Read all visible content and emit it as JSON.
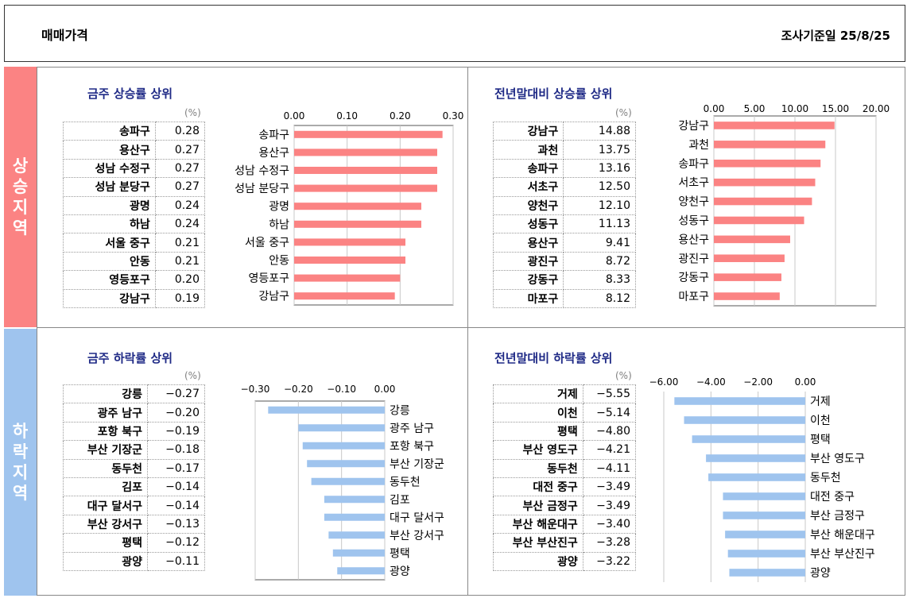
{
  "header": {
    "title": "매매가격",
    "survey_date": "조사기준일  25/8/25"
  },
  "side_labels": {
    "rise": "상\n승\n지\n역",
    "fall": "하\n락\n지\n역"
  },
  "colors": {
    "rise": "#fb8383",
    "fall": "#9fc4ee",
    "title": "#1f2a86"
  },
  "panels": {
    "week_rise": {
      "title": "금주 상승률 상위",
      "unit": "(%)",
      "rows": [
        {
          "name": "송파구",
          "value": "0.28"
        },
        {
          "name": "용산구",
          "value": "0.27"
        },
        {
          "name": "성남 수정구",
          "value": "0.27"
        },
        {
          "name": "성남 분당구",
          "value": "0.27"
        },
        {
          "name": "광명",
          "value": "0.24"
        },
        {
          "name": "하남",
          "value": "0.24"
        },
        {
          "name": "서울 중구",
          "value": "0.21"
        },
        {
          "name": "안동",
          "value": "0.21"
        },
        {
          "name": "영등포구",
          "value": "0.20"
        },
        {
          "name": "강남구",
          "value": "0.19"
        }
      ]
    },
    "ytd_rise": {
      "title": "전년말대비 상승률 상위",
      "unit": "(%)",
      "rows": [
        {
          "name": "강남구",
          "value": "14.88"
        },
        {
          "name": "과천",
          "value": "13.75"
        },
        {
          "name": "송파구",
          "value": "13.16"
        },
        {
          "name": "서초구",
          "value": "12.50"
        },
        {
          "name": "양천구",
          "value": "12.10"
        },
        {
          "name": "성동구",
          "value": "11.13"
        },
        {
          "name": "용산구",
          "value": "9.41"
        },
        {
          "name": "광진구",
          "value": "8.72"
        },
        {
          "name": "강동구",
          "value": "8.33"
        },
        {
          "name": "마포구",
          "value": "8.12"
        }
      ]
    },
    "week_fall": {
      "title": "금주 하락률 상위",
      "unit": "(%)",
      "rows": [
        {
          "name": "강릉",
          "value": "−0.27"
        },
        {
          "name": "광주 남구",
          "value": "−0.20"
        },
        {
          "name": "포항 북구",
          "value": "−0.19"
        },
        {
          "name": "부산 기장군",
          "value": "−0.18"
        },
        {
          "name": "동두천",
          "value": "−0.17"
        },
        {
          "name": "김포",
          "value": "−0.14"
        },
        {
          "name": "대구 달서구",
          "value": "−0.14"
        },
        {
          "name": "부산 강서구",
          "value": "−0.13"
        },
        {
          "name": "평택",
          "value": "−0.12"
        },
        {
          "name": "광양",
          "value": "−0.11"
        }
      ]
    },
    "ytd_fall": {
      "title": "전년말대비 하락률 상위",
      "unit": "(%)",
      "rows": [
        {
          "name": "거제",
          "value": "−5.55"
        },
        {
          "name": "이천",
          "value": "−5.14"
        },
        {
          "name": "평택",
          "value": "−4.80"
        },
        {
          "name": "부산 영도구",
          "value": "−4.21"
        },
        {
          "name": "동두천",
          "value": "−4.11"
        },
        {
          "name": "대전 중구",
          "value": "−3.49"
        },
        {
          "name": "부산 금정구",
          "value": "−3.49"
        },
        {
          "name": "부산 해운대구",
          "value": "−3.40"
        },
        {
          "name": "부산 부산진구",
          "value": "−3.28"
        },
        {
          "name": "광양",
          "value": "−3.22"
        }
      ]
    }
  },
  "chart_data": [
    {
      "type": "bar",
      "orientation": "horizontal",
      "id": "week_rise",
      "categories": [
        "송파구",
        "용산구",
        "성남 수정구",
        "성남 분당구",
        "광명",
        "하남",
        "서울 중구",
        "안동",
        "영등포구",
        "강남구"
      ],
      "values": [
        0.28,
        0.27,
        0.27,
        0.27,
        0.24,
        0.24,
        0.21,
        0.21,
        0.2,
        0.19
      ],
      "xlim": [
        0,
        0.3
      ],
      "ticks": [
        0,
        0.1,
        0.2,
        0.3
      ],
      "tick_labels": [
        "0.00",
        "0.10",
        "0.20",
        "0.30"
      ],
      "color": "#fb8383",
      "grid": true
    },
    {
      "type": "bar",
      "orientation": "horizontal",
      "id": "ytd_rise",
      "categories": [
        "강남구",
        "과천",
        "송파구",
        "서초구",
        "양천구",
        "성동구",
        "용산구",
        "광진구",
        "강동구",
        "마포구"
      ],
      "values": [
        14.88,
        13.75,
        13.16,
        12.5,
        12.1,
        11.13,
        9.41,
        8.72,
        8.33,
        8.12
      ],
      "xlim": [
        0,
        20
      ],
      "ticks": [
        0,
        5,
        10,
        15,
        20
      ],
      "tick_labels": [
        "0.00",
        "5.00",
        "10.00",
        "15.00",
        "20.00"
      ],
      "color": "#fb8383",
      "grid": true
    },
    {
      "type": "bar",
      "orientation": "horizontal",
      "id": "week_fall",
      "categories": [
        "강릉",
        "광주 남구",
        "포항 북구",
        "부산 기장군",
        "동두천",
        "김포",
        "대구 달서구",
        "부산 강서구",
        "평택",
        "광양"
      ],
      "values": [
        -0.27,
        -0.2,
        -0.19,
        -0.18,
        -0.17,
        -0.14,
        -0.14,
        -0.13,
        -0.12,
        -0.11
      ],
      "xlim": [
        -0.3,
        0
      ],
      "ticks": [
        -0.3,
        -0.2,
        -0.1,
        0
      ],
      "tick_labels": [
        "−0.30",
        "−0.20",
        "−0.10",
        "0.00"
      ],
      "color": "#9fc4ee",
      "grid": true
    },
    {
      "type": "bar",
      "orientation": "horizontal",
      "id": "ytd_fall",
      "categories": [
        "거제",
        "이천",
        "평택",
        "부산 영도구",
        "동두천",
        "대전 중구",
        "부산 금정구",
        "부산 해운대구",
        "부산 부산진구",
        "광양"
      ],
      "values": [
        -5.55,
        -5.14,
        -4.8,
        -4.21,
        -4.11,
        -3.49,
        -3.49,
        -3.4,
        -3.28,
        -3.22
      ],
      "xlim": [
        -6,
        0
      ],
      "ticks": [
        -6,
        -4,
        -2,
        0
      ],
      "tick_labels": [
        "−6.00",
        "−4.00",
        "−2.00",
        "0.00"
      ],
      "color": "#9fc4ee",
      "grid": true
    }
  ]
}
